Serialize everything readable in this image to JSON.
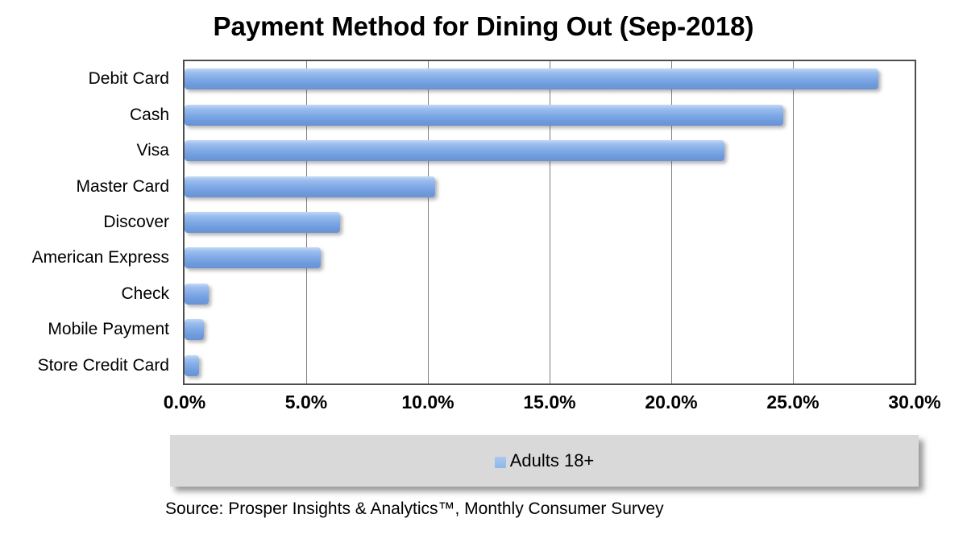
{
  "chart_data": {
    "type": "bar",
    "orientation": "horizontal",
    "title": "Payment Method for Dining Out (Sep-2018)",
    "categories": [
      "Debit Card",
      "Cash",
      "Visa",
      "Master Card",
      "Discover",
      "American Express",
      "Check",
      "Mobile Payment",
      "Store Credit Card"
    ],
    "series": [
      {
        "name": "Adults 18+",
        "values": [
          28.5,
          24.6,
          22.2,
          10.3,
          6.4,
          5.6,
          1.0,
          0.8,
          0.6
        ]
      }
    ],
    "value_unit": "%",
    "xlim": [
      0,
      30
    ],
    "x_ticks": [
      "0.0%",
      "5.0%",
      "10.0%",
      "15.0%",
      "20.0%",
      "25.0%",
      "30.0%"
    ],
    "grid": "vertical",
    "legend_position": "bottom"
  },
  "legend": {
    "label": "Adults 18+"
  },
  "source": {
    "text": "Source: Prosper Insights & Analytics™, Monthly Consumer Survey"
  },
  "colors": {
    "text": "#000000",
    "plot_border": "#4d4d4d",
    "gridline": "#7f7f7f",
    "bar_gradient_top": "#c3d8f6",
    "bar_gradient_mid": "#7fa9e6",
    "bar_gradient_bottom": "#6992d2",
    "legend_swatch": "#8fb7e8",
    "legend_background": "#d9d9d9"
  }
}
